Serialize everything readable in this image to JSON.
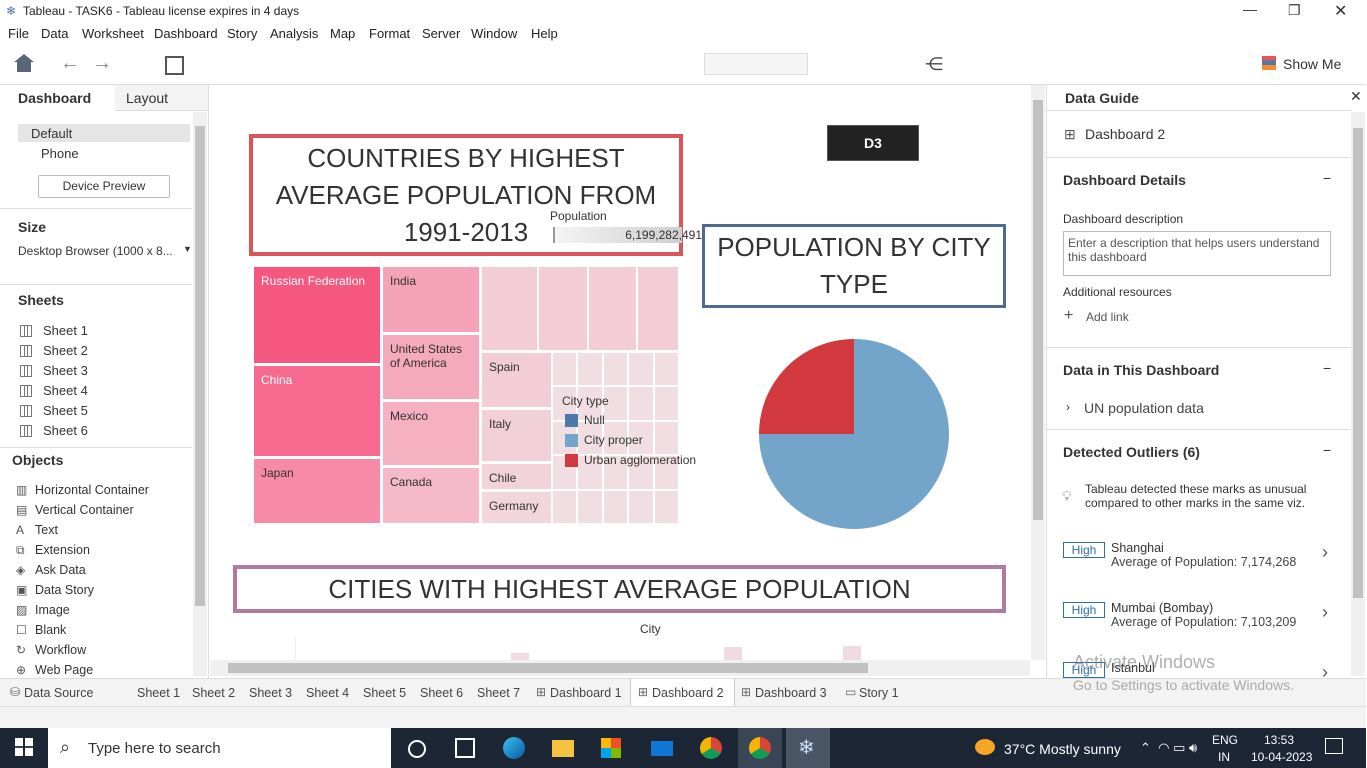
{
  "window": {
    "title": "Tableau - TASK6 - Tableau license expires in 4 days"
  },
  "menu": [
    "File",
    "Data",
    "Worksheet",
    "Dashboard",
    "Story",
    "Analysis",
    "Map",
    "Format",
    "Server",
    "Window",
    "Help"
  ],
  "toolbar": {
    "show_me": "Show Me"
  },
  "left_panel": {
    "tabs": [
      "Dashboard",
      "Layout"
    ],
    "devices": [
      "Default",
      "Phone"
    ],
    "device_preview": "Device Preview",
    "size_heading": "Size",
    "size_value": "Desktop Browser (1000 x 8...",
    "sheets_heading": "Sheets",
    "sheets": [
      "Sheet 1",
      "Sheet 2",
      "Sheet 3",
      "Sheet 4",
      "Sheet 5",
      "Sheet 6"
    ],
    "objects_heading": "Objects",
    "objects": [
      "Horizontal Container",
      "Vertical Container",
      "Text",
      "Extension",
      "Ask Data",
      "Data Story",
      "Image",
      "Blank",
      "Workflow",
      "Web Page"
    ]
  },
  "dashboard": {
    "title_countries": "COUNTRIES BY HIGHEST AVERAGE POPULATION FROM 1991-2013",
    "d3": "D3",
    "title_city_type": "POPULATION BY CITY TYPE",
    "title_cities": "CITIES WITH HIGHEST AVERAGE POPULATION",
    "city_axis": "City",
    "treemap": {
      "legend_title": "Population",
      "legend_value": "6,199,282,491",
      "labels": [
        "Russian Federation",
        "China",
        "Japan",
        "India",
        "United States of America",
        "Mexico",
        "Canada",
        "Spain",
        "Italy",
        "Chile",
        "Germany"
      ]
    },
    "pie": {
      "legend_title": "City type",
      "slices": [
        {
          "name": "Null",
          "color": "#4e79a7",
          "value": 0
        },
        {
          "name": "City proper",
          "color": "#73a5cb",
          "value": 75
        },
        {
          "name": "Urban agglomeration",
          "color": "#d1393f",
          "value": 25
        }
      ]
    }
  },
  "right_panel": {
    "title": "Data Guide",
    "dashboard_name": "Dashboard 2",
    "details_heading": "Dashboard Details",
    "description_label": "Dashboard description",
    "description_placeholder": "Enter a description that helps users understand this dashboard",
    "resources_label": "Additional resources",
    "add_link": "Add link",
    "data_heading": "Data in This Dashboard",
    "data_source": "UN population data",
    "outliers_heading": "Detected Outliers (6)",
    "outliers_note": "Tableau detected these marks as unusual compared to other marks in the same viz.",
    "outliers": [
      {
        "badge": "High",
        "name": "Shanghai",
        "detail": "Average of Population: 7,174,268"
      },
      {
        "badge": "High",
        "name": "Mumbai (Bombay)",
        "detail": "Average of Population: 7,103,209"
      },
      {
        "badge": "High",
        "name": "Istanbul"
      }
    ]
  },
  "watermark": {
    "line1": "Activate Windows",
    "line2": "Go to Settings to activate Windows."
  },
  "tabs": [
    "Data Source",
    "Sheet 1",
    "Sheet 2",
    "Sheet 3",
    "Sheet 4",
    "Sheet 5",
    "Sheet 6",
    "Sheet 7",
    "Dashboard 1",
    "Dashboard 2",
    "Dashboard 3",
    "Story 1"
  ],
  "taskbar": {
    "search": "Type here to search",
    "weather": "37°C  Mostly sunny",
    "lang": "ENG",
    "region": "IN",
    "time": "13:53",
    "date": "10-04-2023"
  }
}
